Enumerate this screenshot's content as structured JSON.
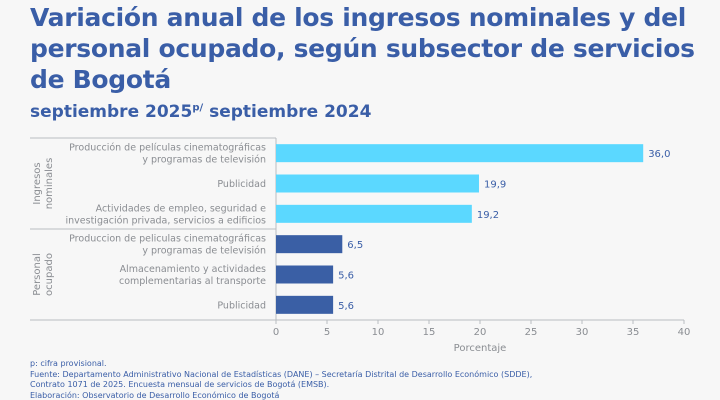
{
  "title": "Variación anual de los ingresos nominales y del personal ocupado, según subsector de servicios de Bogotá",
  "subtitle": {
    "main": "septiembre 2025",
    "sup": "p/",
    "rest": " septiembre 2024"
  },
  "chart_data": {
    "type": "bar",
    "orientation": "horizontal",
    "xlabel": "Porcentaje",
    "xlim": [
      0,
      40
    ],
    "xticks": [
      0,
      5,
      10,
      15,
      20,
      25,
      30,
      35,
      40
    ],
    "grid": false,
    "groups": [
      {
        "name": "Ingresos nominales",
        "color": "#5bd8ff",
        "categories": [
          [
            "Producción de películas cinematográficas",
            "y programas de televisión"
          ],
          [
            "Publicidad"
          ],
          [
            "Actividades de empleo, seguridad e",
            "investigación privada, servicios a edificios"
          ]
        ],
        "values": [
          36.0,
          19.9,
          19.2
        ],
        "labels": [
          "36,0",
          "19,9",
          "19,2"
        ]
      },
      {
        "name": "Personal ocupado",
        "color": "#3a5fa5",
        "categories": [
          [
            "Produccion de peliculas cinematográficas",
            "y programas de televisión"
          ],
          [
            "Almacenamiento y actividades",
            "complementarias al transporte"
          ],
          [
            "Publicidad"
          ]
        ],
        "values": [
          6.5,
          5.6,
          5.6
        ],
        "labels": [
          "6,5",
          "5,6",
          "5,6"
        ]
      }
    ]
  },
  "notes": [
    "p: cifra provisional.",
    "Fuente: Departamento Administrativo Nacional de Estadísticas (DANE) – Secretaría Distrital de Desarrollo Económico (SDDE),",
    "Contrato 1071 de 2025. Encuesta mensual de servicios de Bogotá (EMSB).",
    "Elaboración: Observatorio de Desarrollo Económico de Bogotá"
  ]
}
